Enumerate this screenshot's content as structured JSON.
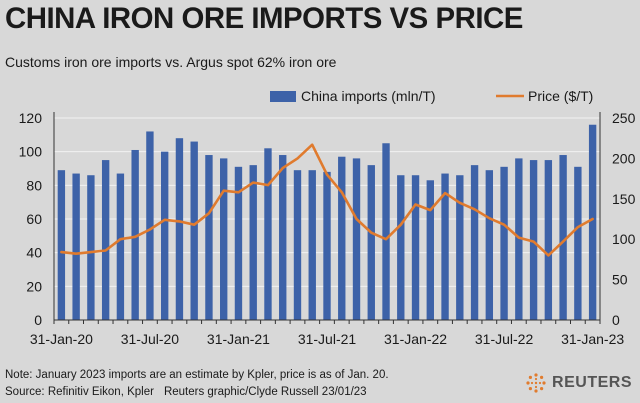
{
  "header": {
    "title": "CHINA IRON ORE IMPORTS VS PRICE",
    "subtitle": "Customs iron ore imports vs. Argus spot 62% iron ore"
  },
  "footer": {
    "note": "Note: January 2023 imports are an estimate by Kpler, price is as of Jan. 20.",
    "source": "Source: Refinitiv Eikon, Kpler",
    "credit": "Reuters graphic/Clyde Russell 23/01/23",
    "logo_text": "REUTERS"
  },
  "colors": {
    "bar": "#3d62a8",
    "line": "#e07b2e",
    "background": "#d8d8d8",
    "grid": "#f2f2f2"
  },
  "chart_data": {
    "type": "bar",
    "title": "CHINA IRON ORE IMPORTS VS PRICE",
    "subtitle": "Customs iron ore imports vs. Argus spot 62% iron ore",
    "legend_position": "top",
    "grid": true,
    "x_tick_labels": [
      "31-Jan-20",
      "31-Jul-20",
      "31-Jan-21",
      "31-Jul-21",
      "31-Jan-22",
      "31-Jul-22",
      "31-Jan-23"
    ],
    "y_left": {
      "ticks": [
        0,
        20,
        40,
        60,
        80,
        100,
        120
      ],
      "range": [
        0,
        120
      ]
    },
    "y_right": {
      "ticks": [
        0,
        50,
        100,
        150,
        200,
        250
      ],
      "range": [
        0,
        250
      ]
    },
    "series": [
      {
        "name": "China imports (mln/T)",
        "type": "bar",
        "axis": "left",
        "values": [
          89,
          87,
          86,
          95,
          87,
          101,
          112,
          100,
          108,
          106,
          98,
          96,
          91,
          92,
          102,
          98,
          89,
          89,
          88,
          97,
          96,
          92,
          105,
          86,
          86,
          83,
          87,
          86,
          92,
          89,
          91,
          96,
          95,
          95,
          98,
          91,
          116
        ]
      },
      {
        "name": "Price ($/T)",
        "type": "line",
        "axis": "right",
        "values": [
          84,
          82,
          84,
          86,
          100,
          103,
          112,
          124,
          122,
          118,
          132,
          160,
          158,
          170,
          167,
          188,
          200,
          217,
          180,
          158,
          125,
          108,
          100,
          118,
          143,
          136,
          157,
          145,
          137,
          126,
          118,
          102,
          97,
          80,
          97,
          115,
          125
        ]
      }
    ]
  }
}
